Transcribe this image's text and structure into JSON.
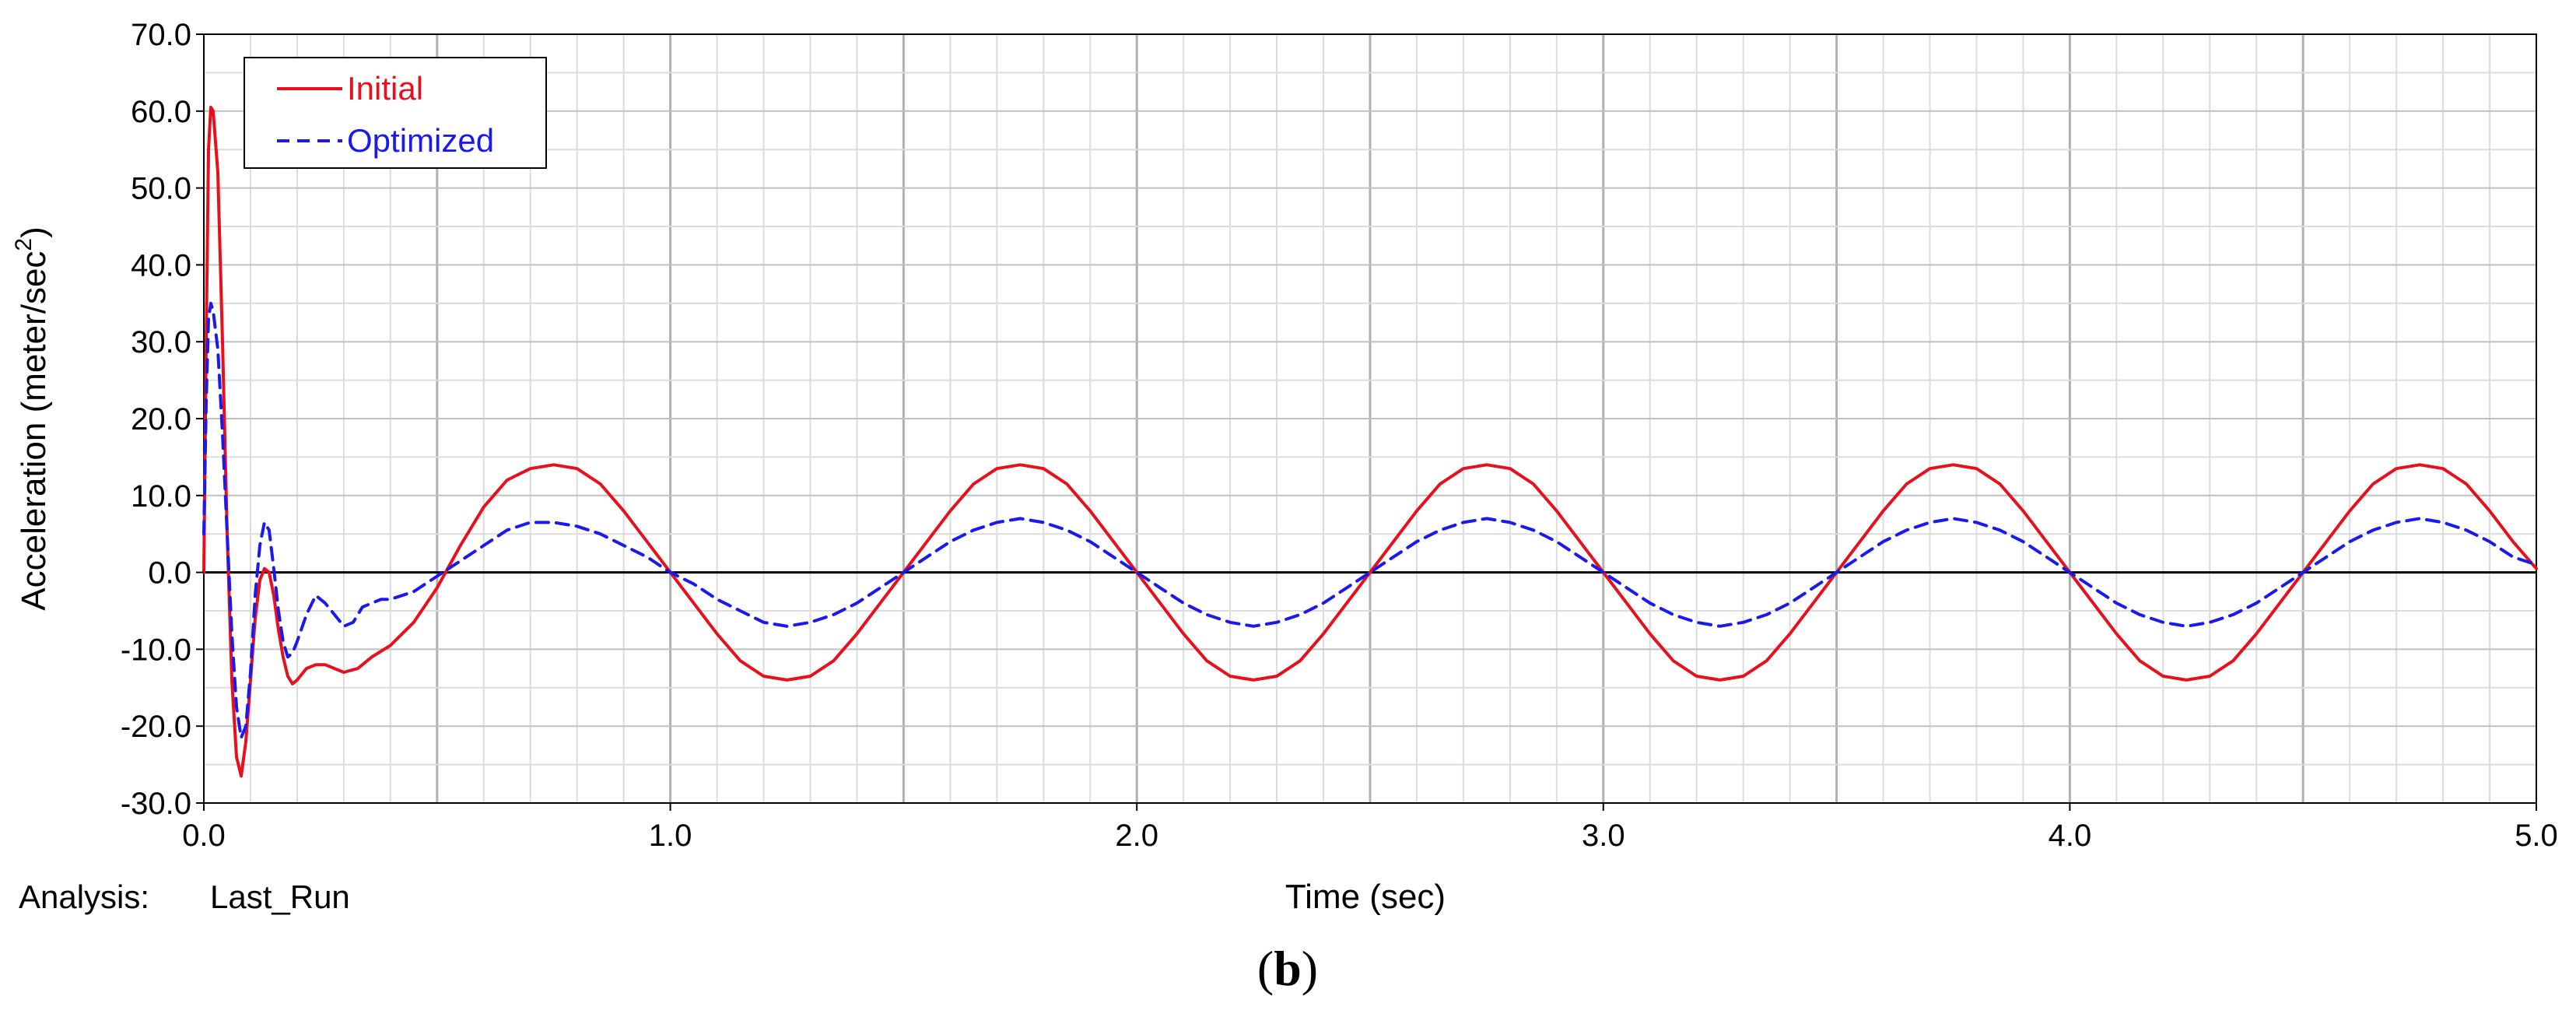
{
  "chart_data": {
    "type": "line",
    "xlabel": "Time (sec)",
    "ylabel_prefix": "Acceleration (meter/sec",
    "ylabel_superscript": "2",
    "ylabel_suffix": ")",
    "xlim": [
      0.0,
      5.0
    ],
    "ylim": [
      -30.0,
      70.0
    ],
    "xticks": [
      0.0,
      1.0,
      2.0,
      3.0,
      4.0,
      5.0
    ],
    "xtick_labels": [
      "0.0",
      "1.0",
      "2.0",
      "3.0",
      "4.0",
      "5.0"
    ],
    "yticks": [
      70.0,
      60.0,
      50.0,
      40.0,
      30.0,
      20.0,
      10.0,
      0.0,
      -10.0,
      -20.0,
      -30.0
    ],
    "ytick_labels": [
      "70.0",
      "60.0",
      "50.0",
      "40.0",
      "30.0",
      "20.0",
      "10.0",
      "0.0",
      "-10.0",
      "-20.0",
      "-30.0"
    ],
    "grid": true,
    "legend_position": "top-left",
    "series": [
      {
        "name": "Initial",
        "color": "#e8101c",
        "dash": "solid",
        "x": [
          0.0,
          0.005,
          0.01,
          0.015,
          0.02,
          0.03,
          0.04,
          0.05,
          0.06,
          0.07,
          0.08,
          0.09,
          0.1,
          0.11,
          0.12,
          0.13,
          0.14,
          0.15,
          0.16,
          0.17,
          0.18,
          0.19,
          0.2,
          0.22,
          0.24,
          0.26,
          0.28,
          0.3,
          0.33,
          0.36,
          0.4,
          0.45,
          0.5,
          0.55,
          0.6,
          0.65,
          0.7,
          0.75,
          0.8,
          0.85,
          0.9,
          0.95,
          1.0,
          1.05,
          1.1,
          1.15,
          1.2,
          1.25,
          1.3,
          1.35,
          1.4,
          1.45,
          1.5,
          1.55,
          1.6,
          1.65,
          1.7,
          1.75,
          1.8,
          1.85,
          1.9,
          1.95,
          2.0,
          2.05,
          2.1,
          2.15,
          2.2,
          2.25,
          2.3,
          2.35,
          2.4,
          2.45,
          2.5,
          2.55,
          2.6,
          2.65,
          2.7,
          2.75,
          2.8,
          2.85,
          2.9,
          2.95,
          3.0,
          3.05,
          3.1,
          3.15,
          3.2,
          3.25,
          3.3,
          3.35,
          3.4,
          3.45,
          3.5,
          3.55,
          3.6,
          3.65,
          3.7,
          3.75,
          3.8,
          3.85,
          3.9,
          3.95,
          4.0,
          4.05,
          4.1,
          4.15,
          4.2,
          4.25,
          4.3,
          4.35,
          4.4,
          4.45,
          4.5,
          4.55,
          4.6,
          4.65,
          4.7,
          4.75,
          4.8,
          4.85,
          4.9,
          4.95,
          5.0
        ],
        "y": [
          0.0,
          30.0,
          55.0,
          60.5,
          60.0,
          52.0,
          30.0,
          5.0,
          -14.0,
          -24.0,
          -26.5,
          -22.0,
          -14.0,
          -6.0,
          -1.0,
          0.5,
          0.0,
          -3.0,
          -7.5,
          -11.0,
          -13.5,
          -14.5,
          -14.0,
          -12.5,
          -12.0,
          -12.0,
          -12.5,
          -13.0,
          -12.5,
          -11.0,
          -9.5,
          -6.5,
          -2.0,
          3.5,
          8.5,
          12.0,
          13.5,
          14.0,
          13.5,
          11.5,
          8.0,
          4.0,
          0.0,
          -4.0,
          -8.0,
          -11.5,
          -13.5,
          -14.0,
          -13.5,
          -11.5,
          -8.0,
          -4.0,
          0.0,
          4.0,
          8.0,
          11.5,
          13.5,
          14.0,
          13.5,
          11.5,
          8.0,
          4.0,
          0.0,
          -4.0,
          -8.0,
          -11.5,
          -13.5,
          -14.0,
          -13.5,
          -11.5,
          -8.0,
          -4.0,
          0.0,
          4.0,
          8.0,
          11.5,
          13.5,
          14.0,
          13.5,
          11.5,
          8.0,
          4.0,
          0.0,
          -4.0,
          -8.0,
          -11.5,
          -13.5,
          -14.0,
          -13.5,
          -11.5,
          -8.0,
          -4.0,
          0.0,
          4.0,
          8.0,
          11.5,
          13.5,
          14.0,
          13.5,
          11.5,
          8.0,
          4.0,
          0.0,
          -4.0,
          -8.0,
          -11.5,
          -13.5,
          -14.0,
          -13.5,
          -11.5,
          -8.0,
          -4.0,
          0.0,
          4.0,
          8.0,
          11.5,
          13.5,
          14.0,
          13.5,
          11.5,
          8.0,
          4.0,
          0.5
        ]
      },
      {
        "name": "Optimized",
        "color": "#1a1aee",
        "dash": "dashed",
        "x": [
          0.0,
          0.005,
          0.01,
          0.015,
          0.02,
          0.03,
          0.04,
          0.05,
          0.06,
          0.07,
          0.08,
          0.09,
          0.1,
          0.11,
          0.12,
          0.13,
          0.14,
          0.15,
          0.16,
          0.17,
          0.18,
          0.19,
          0.2,
          0.22,
          0.24,
          0.26,
          0.28,
          0.3,
          0.32,
          0.34,
          0.36,
          0.38,
          0.4,
          0.45,
          0.5,
          0.55,
          0.6,
          0.65,
          0.7,
          0.75,
          0.8,
          0.85,
          0.9,
          0.95,
          1.0,
          1.05,
          1.1,
          1.15,
          1.2,
          1.25,
          1.3,
          1.35,
          1.4,
          1.45,
          1.5,
          1.55,
          1.6,
          1.65,
          1.7,
          1.75,
          1.8,
          1.85,
          1.9,
          1.95,
          2.0,
          2.05,
          2.1,
          2.15,
          2.2,
          2.25,
          2.3,
          2.35,
          2.4,
          2.45,
          2.5,
          2.55,
          2.6,
          2.65,
          2.7,
          2.75,
          2.8,
          2.85,
          2.9,
          2.95,
          3.0,
          3.05,
          3.1,
          3.15,
          3.2,
          3.25,
          3.3,
          3.35,
          3.4,
          3.45,
          3.5,
          3.55,
          3.6,
          3.65,
          3.7,
          3.75,
          3.8,
          3.85,
          3.9,
          3.95,
          4.0,
          4.05,
          4.1,
          4.15,
          4.2,
          4.25,
          4.3,
          4.35,
          4.4,
          4.45,
          4.5,
          4.55,
          4.6,
          4.65,
          4.7,
          4.75,
          4.8,
          4.85,
          4.9,
          4.95,
          5.0
        ],
        "y": [
          5.0,
          22.0,
          33.0,
          35.0,
          34.0,
          29.0,
          18.0,
          5.0,
          -8.0,
          -17.5,
          -21.5,
          -20.0,
          -13.0,
          -3.0,
          3.5,
          6.5,
          5.5,
          0.5,
          -5.0,
          -9.0,
          -11.0,
          -10.5,
          -9.0,
          -5.5,
          -3.0,
          -4.0,
          -5.5,
          -7.0,
          -6.5,
          -4.5,
          -4.0,
          -3.5,
          -3.5,
          -2.5,
          -0.5,
          1.5,
          3.5,
          5.5,
          6.5,
          6.5,
          6.0,
          5.0,
          3.5,
          2.0,
          0.0,
          -1.5,
          -3.5,
          -5.0,
          -6.5,
          -7.0,
          -6.5,
          -5.5,
          -4.0,
          -2.0,
          0.0,
          2.0,
          4.0,
          5.5,
          6.5,
          7.0,
          6.5,
          5.5,
          4.0,
          2.0,
          0.0,
          -2.0,
          -4.0,
          -5.5,
          -6.5,
          -7.0,
          -6.5,
          -5.5,
          -4.0,
          -2.0,
          0.0,
          2.0,
          4.0,
          5.5,
          6.5,
          7.0,
          6.5,
          5.5,
          4.0,
          2.0,
          0.0,
          -2.0,
          -4.0,
          -5.5,
          -6.5,
          -7.0,
          -6.5,
          -5.5,
          -4.0,
          -2.0,
          0.0,
          2.0,
          4.0,
          5.5,
          6.5,
          7.0,
          6.5,
          5.5,
          4.0,
          2.0,
          0.0,
          -2.0,
          -4.0,
          -5.5,
          -6.5,
          -7.0,
          -6.5,
          -5.5,
          -4.0,
          -2.0,
          0.0,
          2.0,
          4.0,
          5.5,
          6.5,
          7.0,
          6.5,
          5.5,
          4.0,
          2.0,
          1.0
        ]
      }
    ],
    "zero_line_color": "#000000",
    "grid_color": "#c0c0c0"
  },
  "footer": {
    "analysis_label": "Analysis:",
    "analysis_value": "Last_Run"
  },
  "caption": {
    "open": "(",
    "letter": "b",
    "close": ")"
  }
}
